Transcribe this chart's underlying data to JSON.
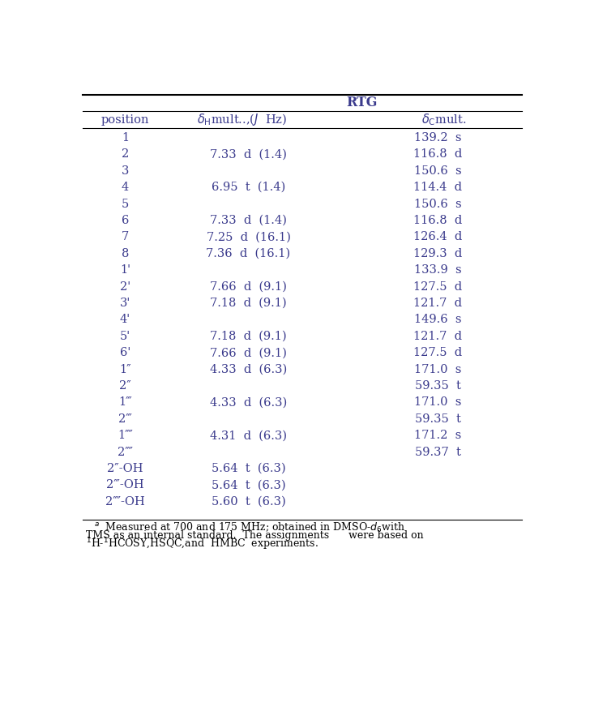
{
  "background_color": "#ffffff",
  "text_color": "#3a3a8c",
  "footnote_color": "#000000",
  "font_size": 10.5,
  "footnote_font_size": 9.0,
  "rows": [
    [
      "1",
      "",
      "139.2  s"
    ],
    [
      "2",
      "7.33  d  (1.4)",
      "116.8  d"
    ],
    [
      "3",
      "",
      "150.6  s"
    ],
    [
      "4",
      "6.95  t  (1.4)",
      "114.4  d"
    ],
    [
      "5",
      "",
      "150.6  s"
    ],
    [
      "6",
      "7.33  d  (1.4)",
      "116.8  d"
    ],
    [
      "7",
      "7.25  d  (16.1)",
      "126.4  d"
    ],
    [
      "8",
      "7.36  d  (16.1)",
      "129.3  d"
    ],
    [
      "1'",
      "",
      "133.9  s"
    ],
    [
      "2'",
      "7.66  d  (9.1)",
      "127.5  d"
    ],
    [
      "3'",
      "7.18  d  (9.1)",
      "121.7  d"
    ],
    [
      "4'",
      "",
      "149.6  s"
    ],
    [
      "5'",
      "7.18  d  (9.1)",
      "121.7  d"
    ],
    [
      "6'",
      "7.66  d  (9.1)",
      "127.5  d"
    ],
    [
      "1\"\"",
      "4.33  d  (6.3)",
      "171.0  s"
    ],
    [
      "2\"\"",
      "",
      "59.35  t"
    ],
    [
      "1\"\"'",
      "4.33  d  (6.3)",
      "171.0  s"
    ],
    [
      "2\"\"'",
      "",
      "59.35  t"
    ],
    [
      "1\"\"\"\"",
      "4.31  d  (6.3)",
      "171.2  s"
    ],
    [
      "2\"\"\"\"",
      "",
      "59.37  t"
    ],
    [
      "2\"-OH",
      "5.64  t  (6.3)",
      ""
    ],
    [
      "2\"'-OH",
      "5.64  t  (6.3)",
      ""
    ],
    [
      "2\"\"\"-OH",
      "5.60  t  (6.3)",
      ""
    ]
  ],
  "pos_labels": [
    "1",
    "2",
    "3",
    "4",
    "5",
    "6",
    "7",
    "8",
    "1'",
    "2'",
    "3'",
    "4'",
    "5'",
    "6'",
    "1″",
    "2″",
    "1‴",
    "2‴",
    "1⁗",
    "2⁗",
    "2″-OH",
    "2‴-OH",
    "2⁗-OH"
  ],
  "h_vals": [
    "",
    "7.33  d  (1.4)",
    "",
    "6.95  t  (1.4)",
    "",
    "7.33  d  (1.4)",
    "7.25  d  (16.1)",
    "7.36  d  (16.1)",
    "",
    "7.66  d  (9.1)",
    "7.18  d  (9.1)",
    "",
    "7.18  d  (9.1)",
    "7.66  d  (9.1)",
    "4.33  d  (6.3)",
    "",
    "4.33  d  (6.3)",
    "",
    "4.31  d  (6.3)",
    "",
    "5.64  t  (6.3)",
    "5.64  t  (6.3)",
    "5.60  t  (6.3)"
  ],
  "c_vals": [
    "139.2  s",
    "116.8  d",
    "150.6  s",
    "114.4  d",
    "150.6  s",
    "116.8  d",
    "126.4  d",
    "129.3  d",
    "133.9  s",
    "127.5  d",
    "121.7  d",
    "149.6  s",
    "121.7  d",
    "127.5  d",
    "171.0  s",
    "59.35  t",
    "171.0  s",
    "59.35  t",
    "171.2  s",
    "59.37  t",
    "",
    "",
    ""
  ]
}
